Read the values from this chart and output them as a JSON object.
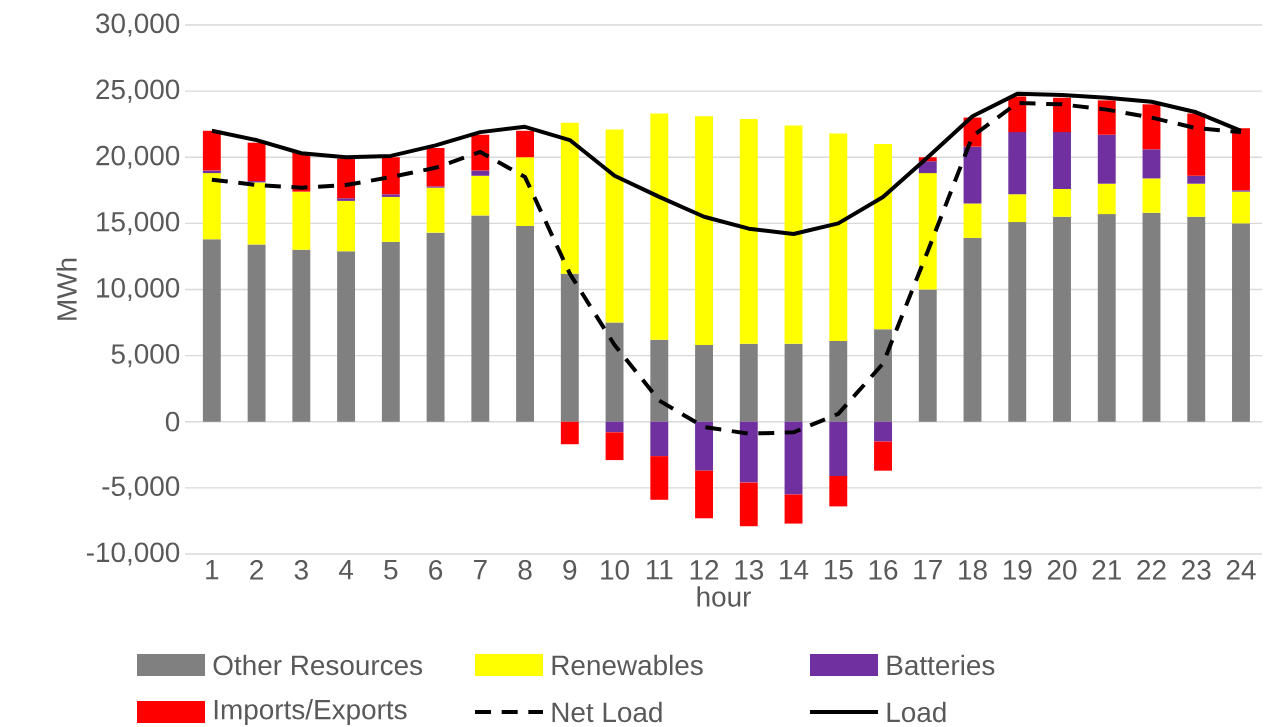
{
  "chart_data": {
    "type": "bar",
    "stacked": true,
    "xlabel": "hour",
    "ylabel": "MWh",
    "categories": [
      "1",
      "2",
      "3",
      "4",
      "5",
      "6",
      "7",
      "8",
      "9",
      "10",
      "11",
      "12",
      "13",
      "14",
      "15",
      "16",
      "17",
      "18",
      "19",
      "20",
      "21",
      "22",
      "23",
      "24"
    ],
    "series": [
      {
        "name": "Other Resources",
        "color": "#808080",
        "values": [
          13800,
          13400,
          13000,
          12900,
          13600,
          14300,
          15600,
          14800,
          11200,
          7500,
          6200,
          5800,
          5900,
          5900,
          6100,
          7000,
          10000,
          13900,
          15100,
          15500,
          15700,
          15800,
          15500,
          15000
        ]
      },
      {
        "name": "Renewables",
        "color": "#ffff00",
        "values": [
          5000,
          4700,
          4400,
          3800,
          3400,
          3400,
          3000,
          5200,
          11400,
          14600,
          17100,
          17300,
          17000,
          16500,
          15700,
          14000,
          8800,
          2600,
          2100,
          2100,
          2300,
          2600,
          2500,
          2400
        ]
      },
      {
        "name": "Batteries",
        "color": "#7030a0",
        "values": [
          200,
          100,
          0,
          200,
          200,
          100,
          400,
          0,
          0,
          -800,
          -2600,
          -3700,
          -4600,
          -5500,
          -4100,
          -1500,
          900,
          4300,
          4700,
          4300,
          3700,
          2200,
          600,
          100
        ]
      },
      {
        "name": "Imports/Exports",
        "color": "#ff0000",
        "values": [
          3000,
          2900,
          3000,
          3000,
          2800,
          2900,
          2700,
          2000,
          -1700,
          -2100,
          -3300,
          -3600,
          -3300,
          -2200,
          -2300,
          -2200,
          300,
          2200,
          2700,
          2600,
          2600,
          3400,
          4700,
          4700
        ]
      },
      {
        "name": "Net Load",
        "type": "line",
        "line_style": "dashed",
        "color": "#000000",
        "values": [
          18300,
          17900,
          17700,
          17900,
          18500,
          19200,
          20400,
          18500,
          11200,
          5800,
          1600,
          -400,
          -900,
          -800,
          600,
          4400,
          12900,
          21600,
          24100,
          24000,
          23600,
          23000,
          22200,
          21900
        ]
      },
      {
        "name": "Load",
        "type": "line",
        "line_style": "solid",
        "color": "#000000",
        "values": [
          22000,
          21300,
          20300,
          20000,
          20100,
          20900,
          21900,
          22300,
          21300,
          18600,
          17000,
          15500,
          14600,
          14200,
          15000,
          17000,
          20000,
          23100,
          24800,
          24700,
          24500,
          24200,
          23400,
          22000
        ]
      }
    ],
    "ylim": [
      -10000,
      30000
    ],
    "yticks": [
      {
        "value": -10000,
        "label": "-10,000"
      },
      {
        "value": -5000,
        "label": "-5,000"
      },
      {
        "value": 0,
        "label": "0"
      },
      {
        "value": 5000,
        "label": "5,000"
      },
      {
        "value": 10000,
        "label": "10,000"
      },
      {
        "value": 15000,
        "label": "15,000"
      },
      {
        "value": 20000,
        "label": "20,000"
      },
      {
        "value": 25000,
        "label": "25,000"
      },
      {
        "value": 30000,
        "label": "30,000"
      }
    ],
    "grid": "y",
    "legend": "bottom",
    "marker": "none"
  }
}
